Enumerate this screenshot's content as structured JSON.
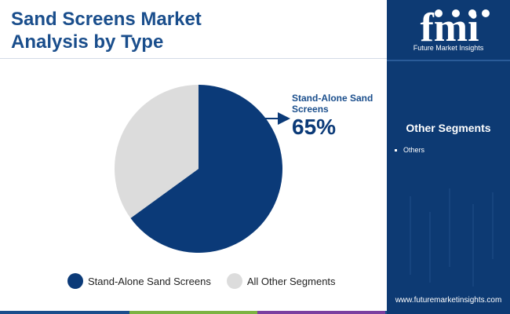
{
  "header": {
    "title_line1": "Sand Screens Market",
    "title_line2": "Analysis by Type"
  },
  "chart_data": {
    "type": "pie",
    "categories": [
      "Stand-Alone Sand Screens",
      "All Other Segments"
    ],
    "values": [
      65,
      35
    ],
    "colors": [
      "#0b3a78",
      "#dcdcdc"
    ],
    "callout": {
      "label": "Stand-Alone Sand Screens",
      "value": "65%"
    },
    "legend": [
      {
        "label": "Stand-Alone Sand Screens",
        "color": "#0b3a78"
      },
      {
        "label": "All Other Segments",
        "color": "#dcdcdc"
      }
    ],
    "legend_position": "bottom"
  },
  "sidebar": {
    "logo_text": "fmi",
    "logo_tagline": "Future Market Insights",
    "segments_title": "Other Segments",
    "segments": [
      "Others"
    ],
    "website": "www.futuremarketinsights.com"
  },
  "colors": {
    "brand": "#1a4e8c",
    "sidebar_bg": "#0d3a73",
    "bottom_bar": [
      "#1a4e8c",
      "#7cb342",
      "#7b3fa0",
      "#1a4e8c"
    ]
  }
}
